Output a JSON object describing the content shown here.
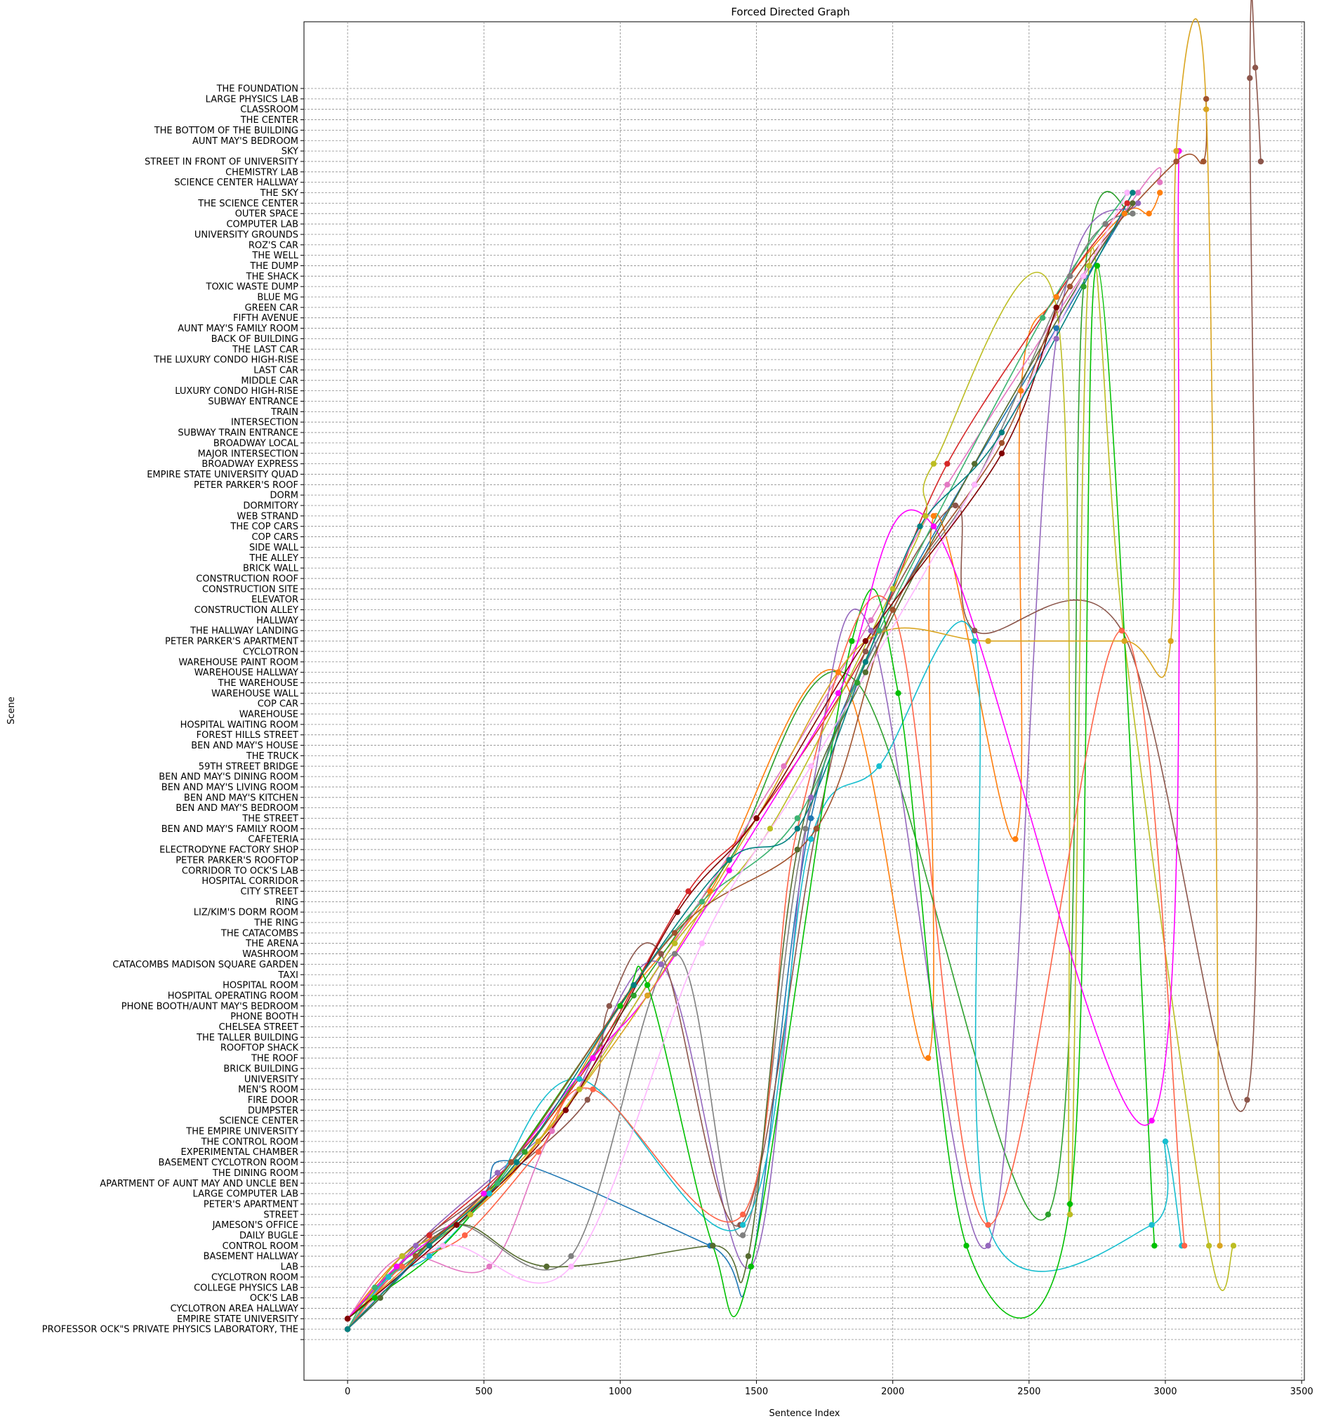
{
  "chart_data": {
    "type": "line",
    "title": "Forced Directed Graph",
    "xlabel": "Sentence Index",
    "ylabel": "Scene",
    "xlim": [
      -160,
      3510
    ],
    "xticks": [
      0,
      500,
      1000,
      1500,
      2000,
      2500,
      3000,
      3500
    ],
    "grid": true,
    "legend": "none",
    "categories": [
      "",
      "PROFESSOR OCK\"S PRIVATE PHYSICS LABORATORY, THE",
      "EMPIRE STATE UNIVERSITY",
      "CYCLOTRON AREA HALLWAY",
      "OCK'S LAB",
      "COLLEGE PHYSICS LAB",
      "CYCLOTRON ROOM",
      "LAB",
      "BASEMENT HALLWAY",
      "CONTROL ROOM",
      "DAILY BUGLE",
      "JAMESON'S OFFICE",
      "STREET",
      "PETER'S APARTMENT",
      "LARGE COMPUTER LAB",
      "APARTMENT OF AUNT MAY AND UNCLE BEN",
      "THE DINING ROOM",
      "BASEMENT CYCLOTRON ROOM",
      "EXPERIMENTAL CHAMBER",
      "THE CONTROL ROOM",
      "THE EMPIRE UNIVERSITY",
      "SCIENCE CENTER",
      "DUMPSTER",
      "FIRE DOOR",
      "MEN'S ROOM",
      "UNIVERSITY",
      "BRICK BUILDING",
      "THE ROOF",
      "ROOFTOP SHACK",
      "THE TALLER BUILDING",
      "CHELSEA STREET",
      "PHONE BOOTH",
      "PHONE BOOTH/AUNT MAY'S BEDROOM",
      "HOSPITAL OPERATING ROOM",
      "HOSPITAL ROOM",
      "TAXI",
      "CATACOMBS MADISON SQUARE GARDEN",
      "WASHROOM",
      "THE ARENA",
      "THE CATACOMBS",
      "THE RING",
      "LIZ/KIM'S DORM ROOM",
      "RING",
      "CITY STREET",
      "HOSPITAL CORRIDOR",
      "CORRIDOR TO OCK'S LAB",
      "PETER PARKER'S ROOFTOP",
      "ELECTRODYNE FACTORY SHOP",
      "CAFETERIA",
      "BEN AND MAY'S FAMILY ROOM",
      "THE STREET",
      "BEN AND MAY'S BEDROOM",
      "BEN AND MAY'S KITCHEN",
      "BEN AND MAY'S LIVING ROOM",
      "BEN AND MAY'S DINING ROOM",
      "59TH STREET BRIDGE",
      "THE TRUCK",
      "BEN AND MAY'S HOUSE",
      "FOREST HILLS STREET",
      "HOSPITAL WAITING ROOM",
      "WAREHOUSE",
      "COP CAR",
      "WAREHOUSE WALL",
      "THE WAREHOUSE",
      "WAREHOUSE HALLWAY",
      "WAREHOUSE PAINT ROOM",
      "CYCLOTRON",
      "PETER PARKER'S APARTMENT",
      "THE HALLWAY LANDING",
      "HALLWAY",
      "CONSTRUCTION ALLEY",
      "ELEVATOR",
      "CONSTRUCTION SITE",
      "CONSTRUCTION ROOF",
      "BRICK WALL",
      "THE ALLEY",
      "SIDE WALL",
      "COP CARS",
      "THE COP CARS",
      "WEB STRAND",
      "DORMITORY",
      "DORM",
      "PETER PARKER'S ROOF",
      "EMPIRE STATE UNIVERSITY QUAD",
      "BROADWAY EXPRESS",
      "MAJOR INTERSECTION",
      "BROADWAY LOCAL",
      "SUBWAY TRAIN ENTRANCE",
      "INTERSECTION",
      "TRAIN",
      "SUBWAY ENTRANCE",
      "LUXURY CONDO HIGH-RISE",
      "MIDDLE CAR",
      "LAST CAR",
      "THE LUXURY CONDO HIGH-RISE",
      "THE LAST CAR",
      "BACK OF BUILDING",
      "AUNT MAY'S FAMILY ROOM",
      "FIFTH AVENUE",
      "GREEN CAR",
      "BLUE MG",
      "TOXIC WASTE DUMP",
      "THE SHACK",
      "THE DUMP",
      "THE WELL",
      "ROZ'S CAR",
      "UNIVERSITY GROUNDS",
      "COMPUTER LAB",
      "OUTER SPACE",
      "THE SCIENCE CENTER",
      "THE SKY",
      "SCIENCE CENTER HALLWAY",
      "CHEMISTRY LAB",
      "STREET IN FRONT OF UNIVERSITY",
      "SKY",
      "AUNT MAY'S BEDROOM",
      "THE BOTTOM OF THE BUILDING",
      "THE CENTER",
      "CLASSROOM",
      "LARGE PHYSICS LAB",
      "THE FOUNDATION"
    ],
    "series": [
      {
        "color": "#1f77b4",
        "points": [
          [
            0,
            1
          ],
          [
            120,
            4
          ],
          [
            300,
            9
          ],
          [
            500,
            14
          ],
          [
            620,
            17
          ],
          [
            1330,
            9
          ],
          [
            1480,
            7
          ],
          [
            1700,
            50
          ],
          [
            2000,
            70
          ],
          [
            2600,
            97
          ],
          [
            2850,
            108
          ]
        ]
      },
      {
        "color": "#ff7f0e",
        "points": [
          [
            0,
            2
          ],
          [
            200,
            8
          ],
          [
            450,
            12
          ],
          [
            700,
            19
          ],
          [
            1000,
            32
          ],
          [
            1330,
            43
          ],
          [
            1800,
            64
          ],
          [
            2130,
            27
          ],
          [
            2150,
            79
          ],
          [
            2450,
            48
          ],
          [
            2470,
            91
          ],
          [
            2600,
            100
          ],
          [
            2850,
            108
          ],
          [
            2940,
            108
          ],
          [
            2980,
            110
          ]
        ]
      },
      {
        "color": "#2ca02c",
        "points": [
          [
            0,
            1
          ],
          [
            180,
            7
          ],
          [
            400,
            11
          ],
          [
            650,
            18
          ],
          [
            1050,
            33
          ],
          [
            1400,
            46
          ],
          [
            1870,
            63
          ],
          [
            2570,
            12
          ],
          [
            2700,
            101
          ],
          [
            2880,
            108
          ]
        ]
      },
      {
        "color": "#d62728",
        "points": [
          [
            0,
            2
          ],
          [
            300,
            10
          ],
          [
            600,
            17
          ],
          [
            900,
            27
          ],
          [
            1250,
            43
          ],
          [
            1500,
            50
          ],
          [
            1900,
            66
          ],
          [
            2200,
            84
          ],
          [
            2650,
            102
          ],
          [
            2860,
            109
          ]
        ]
      },
      {
        "color": "#9467bd",
        "points": [
          [
            0,
            1
          ],
          [
            250,
            9
          ],
          [
            550,
            16
          ],
          [
            800,
            22
          ],
          [
            1150,
            36
          ],
          [
            1480,
            7
          ],
          [
            1700,
            52
          ],
          [
            1920,
            68
          ],
          [
            2350,
            9
          ],
          [
            2600,
            96
          ],
          [
            2900,
            109
          ]
        ]
      },
      {
        "color": "#8c564b",
        "points": [
          [
            0,
            1
          ],
          [
            200,
            8
          ],
          [
            500,
            14
          ],
          [
            880,
            23
          ],
          [
            960,
            32
          ],
          [
            1150,
            37
          ],
          [
            1440,
            11
          ],
          [
            1720,
            49
          ],
          [
            1900,
            66
          ],
          [
            2230,
            80
          ],
          [
            2300,
            68
          ],
          [
            2840,
            68
          ],
          [
            3300,
            23
          ],
          [
            3310,
            121
          ],
          [
            3330,
            122
          ],
          [
            3350,
            113
          ]
        ]
      },
      {
        "color": "#e377c2",
        "points": [
          [
            0,
            2
          ],
          [
            200,
            8
          ],
          [
            520,
            7
          ],
          [
            750,
            20
          ],
          [
            1100,
            34
          ],
          [
            1600,
            55
          ],
          [
            1920,
            69
          ],
          [
            2200,
            82
          ],
          [
            2900,
            110
          ],
          [
            2980,
            111
          ]
        ]
      },
      {
        "color": "#7f7f7f",
        "points": [
          [
            0,
            2
          ],
          [
            150,
            6
          ],
          [
            400,
            11
          ],
          [
            820,
            8
          ],
          [
            1200,
            37
          ],
          [
            1450,
            10
          ],
          [
            1680,
            49
          ],
          [
            2000,
            70
          ],
          [
            2300,
            82
          ],
          [
            2650,
            102
          ],
          [
            2780,
            107
          ],
          [
            2880,
            108
          ]
        ]
      },
      {
        "color": "#bcbd22",
        "points": [
          [
            0,
            1
          ],
          [
            200,
            8
          ],
          [
            450,
            12
          ],
          [
            850,
            24
          ],
          [
            1200,
            38
          ],
          [
            1550,
            49
          ],
          [
            2000,
            72
          ],
          [
            2120,
            79
          ],
          [
            2150,
            84
          ],
          [
            2600,
            99
          ],
          [
            2650,
            12
          ],
          [
            2720,
            103
          ],
          [
            2850,
            67
          ],
          [
            3160,
            9
          ],
          [
            3250,
            9
          ]
        ]
      },
      {
        "color": "#17becf",
        "points": [
          [
            0,
            1
          ],
          [
            150,
            6
          ],
          [
            300,
            8
          ],
          [
            520,
            14
          ],
          [
            850,
            25
          ],
          [
            1450,
            11
          ],
          [
            1700,
            48
          ],
          [
            1950,
            55
          ],
          [
            2300,
            67
          ],
          [
            2350,
            11
          ],
          [
            2950,
            11
          ],
          [
            3000,
            19
          ],
          [
            3060,
            9
          ]
        ]
      },
      {
        "color": "#00c000",
        "points": [
          [
            0,
            2
          ],
          [
            100,
            4
          ],
          [
            350,
            9
          ],
          [
            600,
            17
          ],
          [
            1000,
            32
          ],
          [
            1100,
            34
          ],
          [
            1340,
            9
          ],
          [
            1480,
            7
          ],
          [
            1850,
            67
          ],
          [
            2020,
            62
          ],
          [
            2270,
            9
          ],
          [
            2650,
            13
          ],
          [
            2750,
            103
          ],
          [
            2960,
            9
          ]
        ]
      },
      {
        "color": "#ff6347",
        "points": [
          [
            0,
            1
          ],
          [
            200,
            7
          ],
          [
            430,
            10
          ],
          [
            700,
            18
          ],
          [
            900,
            24
          ],
          [
            1450,
            12
          ],
          [
            1650,
            49
          ],
          [
            2000,
            70
          ],
          [
            2350,
            11
          ],
          [
            2840,
            68
          ],
          [
            3070,
            9
          ]
        ]
      },
      {
        "color": "#3cb371",
        "points": [
          [
            0,
            1
          ],
          [
            100,
            5
          ],
          [
            300,
            9
          ],
          [
            550,
            15
          ],
          [
            1050,
            34
          ],
          [
            1300,
            42
          ],
          [
            1650,
            50
          ],
          [
            1950,
            68
          ],
          [
            2550,
            98
          ],
          [
            2860,
            110
          ]
        ]
      },
      {
        "color": "#ff00ff",
        "points": [
          [
            0,
            2
          ],
          [
            180,
            7
          ],
          [
            500,
            14
          ],
          [
            900,
            27
          ],
          [
            1100,
            33
          ],
          [
            1400,
            45
          ],
          [
            1800,
            62
          ],
          [
            2150,
            78
          ],
          [
            2950,
            21
          ],
          [
            3050,
            114
          ]
        ]
      },
      {
        "color": "#556b2f",
        "points": [
          [
            0,
            1
          ],
          [
            120,
            4
          ],
          [
            400,
            11
          ],
          [
            730,
            7
          ],
          [
            1340,
            9
          ],
          [
            1470,
            8
          ],
          [
            1650,
            47
          ],
          [
            1900,
            64
          ],
          [
            2300,
            84
          ],
          [
            2700,
            102
          ],
          [
            2880,
            109
          ]
        ]
      },
      {
        "color": "#a0522d",
        "points": [
          [
            0,
            1
          ],
          [
            250,
            8
          ],
          [
            600,
            17
          ],
          [
            1200,
            39
          ],
          [
            1720,
            49
          ],
          [
            2000,
            70
          ],
          [
            2400,
            86
          ],
          [
            2650,
            101
          ],
          [
            3040,
            113
          ],
          [
            3140,
            113
          ],
          [
            3150,
            119
          ]
        ]
      },
      {
        "color": "#daa520",
        "points": [
          [
            0,
            2
          ],
          [
            300,
            9
          ],
          [
            700,
            19
          ],
          [
            1100,
            33
          ],
          [
            1500,
            50
          ],
          [
            1900,
            67
          ],
          [
            2350,
            67
          ],
          [
            2850,
            67
          ],
          [
            3020,
            67
          ],
          [
            3040,
            114
          ],
          [
            3150,
            118
          ],
          [
            3200,
            9
          ]
        ]
      },
      {
        "color": "#ffb6ff",
        "points": [
          [
            0,
            1
          ],
          [
            350,
            9
          ],
          [
            820,
            7
          ],
          [
            1300,
            38
          ],
          [
            1700,
            55
          ],
          [
            2300,
            82
          ],
          [
            2700,
            102
          ],
          [
            2860,
            110
          ]
        ]
      },
      {
        "color": "#800000",
        "points": [
          [
            0,
            2
          ],
          [
            400,
            11
          ],
          [
            800,
            22
          ],
          [
            1210,
            41
          ],
          [
            1500,
            50
          ],
          [
            1900,
            67
          ],
          [
            2400,
            85
          ],
          [
            2600,
            99
          ]
        ]
      },
      {
        "color": "#008080",
        "points": [
          [
            0,
            1
          ],
          [
            300,
            9
          ],
          [
            620,
            17
          ],
          [
            1050,
            34
          ],
          [
            1400,
            46
          ],
          [
            1650,
            49
          ],
          [
            1900,
            65
          ],
          [
            2100,
            78
          ],
          [
            2400,
            87
          ],
          [
            2880,
            110
          ]
        ]
      }
    ]
  }
}
